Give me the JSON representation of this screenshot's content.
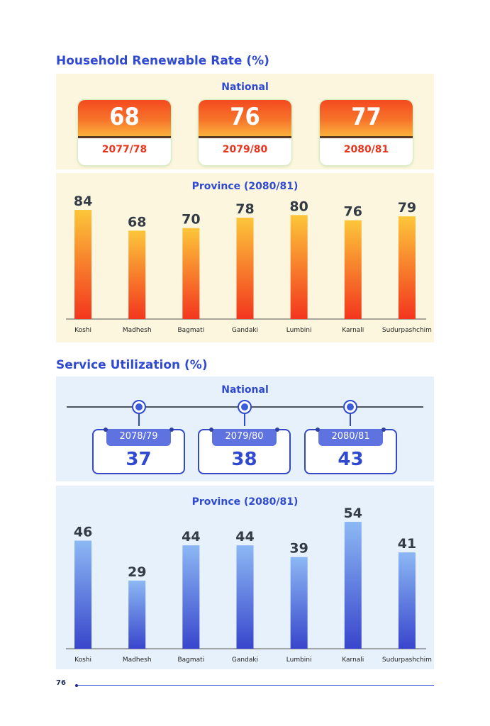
{
  "renewable": {
    "title": "Household Renewable Rate (%)",
    "national_label": "National",
    "national": [
      {
        "value": "68",
        "year": "2077/78"
      },
      {
        "value": "76",
        "year": "2079/80"
      },
      {
        "value": "77",
        "year": "2080/81"
      }
    ],
    "province_label": "Province (2080/81)"
  },
  "service": {
    "title": "Service Utilization (%)",
    "national_label": "National",
    "national": [
      {
        "value": "37",
        "year": "2078/79"
      },
      {
        "value": "38",
        "year": "2079/80"
      },
      {
        "value": "43",
        "year": "2080/81"
      }
    ],
    "province_label": "Province (2080/81)"
  },
  "colors": {
    "title_blue": "#2f4ad0",
    "renewable_bar_top": "#fcc63a",
    "renewable_bar_bottom": "#f3361e",
    "service_bar_top": "#8cb8f4",
    "service_bar_bottom": "#3846cc"
  },
  "chart_data": [
    {
      "type": "bar",
      "title": "Province (2080/81)",
      "categories": [
        "Koshi",
        "Madhesh",
        "Bagmati",
        "Gandaki",
        "Lumbini",
        "Karnali",
        "Sudurpashchim"
      ],
      "values": [
        84,
        68,
        70,
        78,
        80,
        76,
        79
      ],
      "labels": [
        "84",
        "68",
        "70",
        "78",
        "80",
        "76",
        "79"
      ],
      "ylim": [
        0,
        84
      ],
      "grid": false,
      "legend": "none"
    },
    {
      "type": "bar",
      "title": "Province (2080/81)",
      "categories": [
        "Koshi",
        "Madhesh",
        "Bagmati",
        "Gandaki",
        "Lumbini",
        "Karnali",
        "Sudurpashchim"
      ],
      "values": [
        46,
        29,
        44,
        44,
        39,
        54,
        41
      ],
      "labels": [
        "46",
        "29",
        "44",
        "44",
        "39",
        "54",
        "41"
      ],
      "ylim": [
        0,
        54
      ],
      "grid": false,
      "legend": "none"
    }
  ],
  "footer": {
    "page_number": "76"
  }
}
